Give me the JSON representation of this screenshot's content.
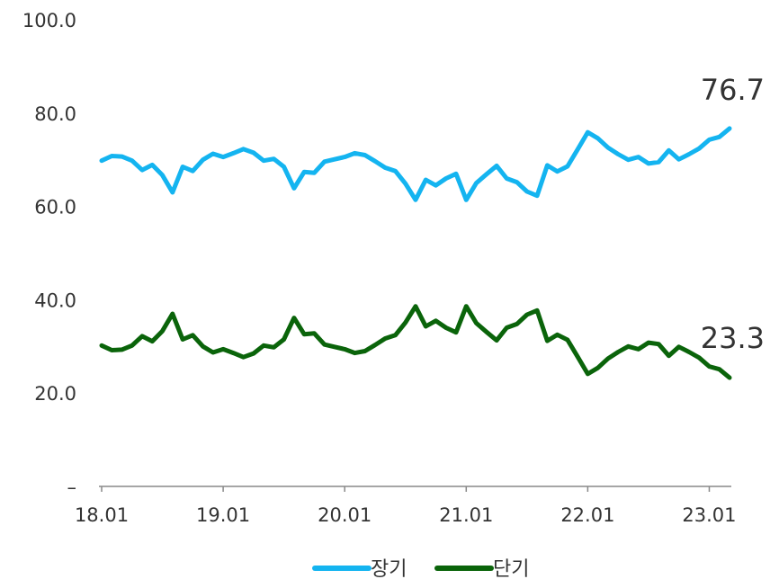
{
  "chart_data": {
    "type": "line",
    "ylim": [
      0,
      100
    ],
    "y_ticks": [
      "100.0",
      "80.0",
      "60.0",
      "40.0",
      "20.0",
      "–"
    ],
    "x_ticks": [
      "18.01",
      "19.01",
      "20.01",
      "21.01",
      "22.01",
      "23.01"
    ],
    "grid": false,
    "legend_position": "bottom-center",
    "series": [
      {
        "name": "장기",
        "color": "#14b4f0",
        "end_label": "76.7",
        "values": [
          69.8,
          70.8,
          70.7,
          69.8,
          67.8,
          68.9,
          66.7,
          63.0,
          68.5,
          67.6,
          70.0,
          71.3,
          70.6,
          71.4,
          72.3,
          71.5,
          69.8,
          70.2,
          68.5,
          63.9,
          67.4,
          67.2,
          69.6,
          70.1,
          70.6,
          71.4,
          71.0,
          69.7,
          68.3,
          67.6,
          64.9,
          61.4,
          65.7,
          64.5,
          66.0,
          67.0,
          61.4,
          65.0,
          66.9,
          68.7,
          66.0,
          65.2,
          63.2,
          62.3,
          68.8,
          67.5,
          68.6,
          72.2,
          75.9,
          74.6,
          72.6,
          71.2,
          70.0,
          70.6,
          69.2,
          69.5,
          72.0,
          70.1,
          71.2,
          72.4,
          74.3,
          74.9,
          76.7
        ]
      },
      {
        "name": "단기",
        "color": "#0a640a",
        "end_label": "23.3",
        "values": [
          30.2,
          29.2,
          29.3,
          30.2,
          32.2,
          31.1,
          33.3,
          37.0,
          31.5,
          32.4,
          30.0,
          28.7,
          29.4,
          28.6,
          27.7,
          28.5,
          30.2,
          29.8,
          31.5,
          36.1,
          32.6,
          32.8,
          30.4,
          29.9,
          29.4,
          28.6,
          29.0,
          30.3,
          31.7,
          32.4,
          35.1,
          38.6,
          34.3,
          35.5,
          34.0,
          33.0,
          38.6,
          35.0,
          33.1,
          31.3,
          34.0,
          34.8,
          36.8,
          37.7,
          31.2,
          32.5,
          31.4,
          27.8,
          24.1,
          25.4,
          27.4,
          28.8,
          30.0,
          29.4,
          30.8,
          30.5,
          28.0,
          29.9,
          28.8,
          27.6,
          25.7,
          25.1,
          23.3
        ]
      }
    ]
  }
}
